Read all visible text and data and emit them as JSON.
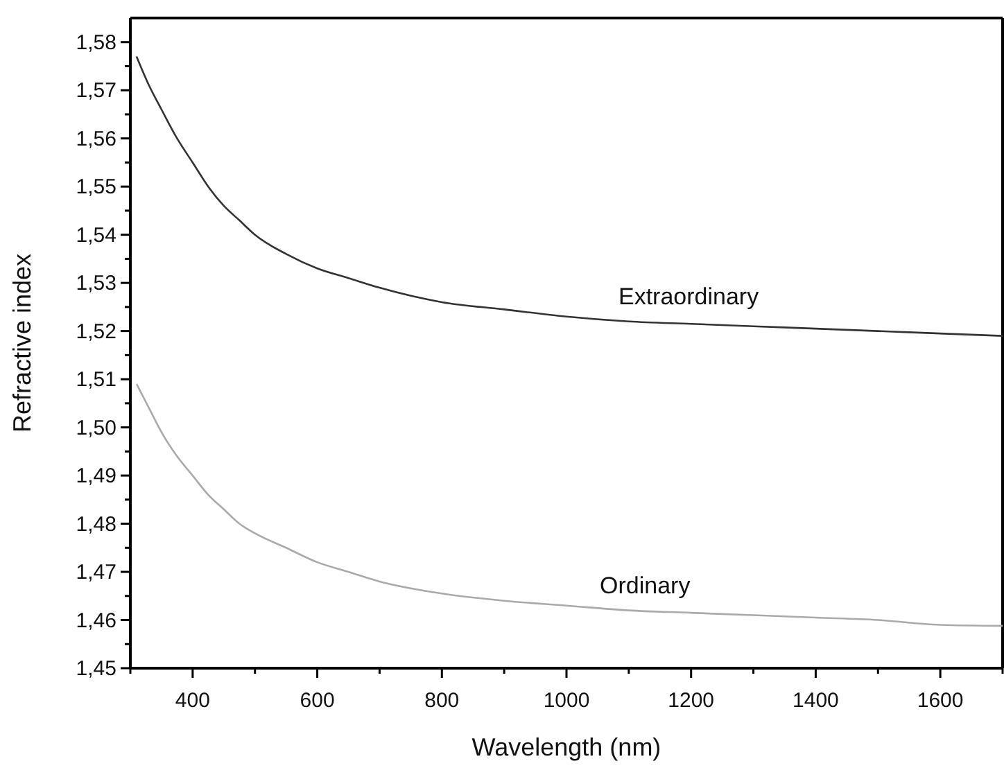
{
  "chart_data": {
    "type": "line",
    "xlabel": "Wavelength (nm)",
    "ylabel": "Refractive index",
    "x": [
      310,
      330,
      350,
      375,
      400,
      425,
      450,
      475,
      500,
      550,
      600,
      650,
      700,
      800,
      900,
      1000,
      1100,
      1200,
      1300,
      1400,
      1500,
      1600,
      1700
    ],
    "series": [
      {
        "name": "Extraordinary",
        "color": "#333333",
        "values": [
          1.577,
          1.571,
          1.566,
          1.56,
          1.555,
          1.55,
          1.546,
          1.543,
          1.54,
          1.536,
          1.533,
          1.531,
          1.529,
          1.526,
          1.5245,
          1.523,
          1.522,
          1.5215,
          1.521,
          1.5205,
          1.52,
          1.5195,
          1.519
        ]
      },
      {
        "name": "Ordinary",
        "color": "#aaaaaa",
        "values": [
          1.509,
          1.504,
          1.499,
          1.494,
          1.49,
          1.486,
          1.483,
          1.48,
          1.478,
          1.475,
          1.472,
          1.47,
          1.468,
          1.4655,
          1.464,
          1.463,
          1.462,
          1.4615,
          1.461,
          1.4605,
          1.46,
          1.459,
          1.4588
        ]
      }
    ],
    "xlim": [
      300,
      1700
    ],
    "xticks": [
      {
        "value": 300,
        "label": null
      },
      400,
      {
        "value": 500,
        "label": null
      },
      600,
      {
        "value": 700,
        "label": null
      },
      800,
      {
        "value": 900,
        "label": null
      },
      1000,
      {
        "value": 1100,
        "label": null
      },
      1200,
      {
        "value": 1300,
        "label": null
      },
      1400,
      {
        "value": 1500,
        "label": null
      },
      1600,
      {
        "value": 1700,
        "label": null
      }
    ],
    "ylim": [
      1.45,
      1.585
    ],
    "yticks": [
      {
        "value": 1.45,
        "label": "1,45"
      },
      {
        "value": 1.455,
        "label": null
      },
      {
        "value": 1.46,
        "label": "1,46"
      },
      {
        "value": 1.465,
        "label": null
      },
      {
        "value": 1.47,
        "label": "1,47"
      },
      {
        "value": 1.475,
        "label": null
      },
      {
        "value": 1.48,
        "label": "1,48"
      },
      {
        "value": 1.485,
        "label": null
      },
      {
        "value": 1.49,
        "label": "1,49"
      },
      {
        "value": 1.495,
        "label": null
      },
      {
        "value": 1.5,
        "label": "1,50"
      },
      {
        "value": 1.505,
        "label": null
      },
      {
        "value": 1.51,
        "label": "1,51"
      },
      {
        "value": 1.515,
        "label": null
      },
      {
        "value": 1.52,
        "label": "1,52"
      },
      {
        "value": 1.525,
        "label": null
      },
      {
        "value": 1.53,
        "label": "1,53"
      },
      {
        "value": 1.535,
        "label": null
      },
      {
        "value": 1.54,
        "label": "1,54"
      },
      {
        "value": 1.545,
        "label": null
      },
      {
        "value": 1.55,
        "label": "1,55"
      },
      {
        "value": 1.555,
        "label": null
      },
      {
        "value": 1.56,
        "label": "1,56"
      },
      {
        "value": 1.565,
        "label": null
      },
      {
        "value": 1.57,
        "label": "1,57"
      },
      {
        "value": 1.575,
        "label": null
      },
      {
        "value": 1.58,
        "label": "1,58"
      }
    ],
    "grid": false,
    "marker": "none",
    "line_style": "solid"
  }
}
